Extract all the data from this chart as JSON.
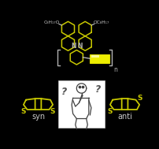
{
  "background_color": "#000000",
  "structure_color": "#c8c800",
  "text_color": "#c8c8c8",
  "label_color": "#c8c8c8",
  "white": "#ffffff",
  "syn_label": "syn",
  "anti_label": "anti",
  "alkyl_left": "C₈H₁₇O",
  "alkyl_right": "OC₈H₁₇",
  "yellow_color": "#ffff00",
  "yellow_shine": "#ffffaa",
  "N_color": "#b0b0b0",
  "bracket_color": "#b0b0b0",
  "n_label": "n"
}
